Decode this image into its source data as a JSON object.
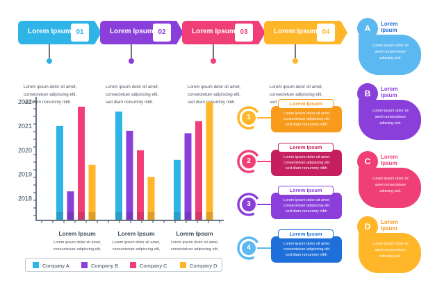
{
  "colors": {
    "blue": "#2fb4e8",
    "purple": "#8a3fdb",
    "crimson": "#c51f5d",
    "pink": "#f03f77",
    "yellow": "#ffb629",
    "orange": "#f89a1c",
    "lightblue": "#5bb8f0",
    "darkblue": "#1e6fd9"
  },
  "steps": [
    {
      "label": "Lorem Ipsum",
      "num": "01",
      "text": "Lorem ipsum dolor sit amet,\nconsectetuer adipiscing elit,\nsed diam nonummy nibh."
    },
    {
      "label": "Lorem Ipsum",
      "num": "02",
      "text": "Lorem ipsum dolor sit amet,\nconsectetuer adipiscing elit,\nsed diam nonummy nibh."
    },
    {
      "label": "Lorem Ipsum",
      "num": "03",
      "text": "Lorem ipsum dolor sit amet,\nconsectetuer adipiscing elit,\nsed diam nonummy nibh."
    },
    {
      "label": "Lorem Ipsum",
      "num": "04",
      "text": "Lorem ipsum dolor sit amet,\nconsectetuer adipiscing elit,\nsed diam nonummy nibh."
    }
  ],
  "right_cards": [
    {
      "letter": "A",
      "title": "Lorem\nIpsum",
      "text": "Lorem ipsum dolor sit\namet consectetuer\nadiscing sed."
    },
    {
      "letter": "B",
      "title": "Lorem\nIpsum",
      "text": "Lorem ipsum dolor sit\namet consectetuer\nadiscing sed."
    },
    {
      "letter": "C",
      "title": "Lorem\nIpsum",
      "text": "Lorem ipsum dolor sit\namet consectetuer\nadiscing sed."
    },
    {
      "letter": "D",
      "title": "Lorem\nIpsum",
      "text": "Lorem ipsum dolor sit\namet consectetuer\nadiscing sed."
    }
  ],
  "mid_items": [
    {
      "num": "1",
      "title": "Lorem Ipsum",
      "text": "Lorem ipsum dolor sit amet\nconsectetuer adipiscing elit\nsed diam nonummy nibh"
    },
    {
      "num": "2",
      "title": "Lorem Ipsum",
      "text": "Lorem ipsum dolor sit amet\nconsectetuer adipiscing elit\nsed diam nonummy nibh"
    },
    {
      "num": "3",
      "title": "Lorem Ipsum",
      "text": "Lorem ipsum dolor sit amet\nconsectetuer adipiscing elit\nsed diam nonummy nibh"
    },
    {
      "num": "4",
      "title": "Lorem Ipsum",
      "text": "Lorem ipsum dolor sit amet\nconsectetuer adipiscing elit\nsed diam nonummy nibh"
    }
  ],
  "chart_subtitles": [
    {
      "title": "Lorem Ipsum",
      "text": "Lorem ipsum dolor sit amet,\nconsectetuer adipiscing elit,"
    },
    {
      "title": "Lorem Ipsum",
      "text": "Lorem ipsum dolor sit amet,\nconsectetuer adipiscing elit,"
    },
    {
      "title": "Lorem Ipsum",
      "text": "Lorem ipsum dolor sit amet,\nconsectetuer adipiscing elit,"
    }
  ],
  "chart_data": {
    "type": "bar",
    "ylim": [
      2017.1,
      2022.2
    ],
    "yticks": [
      2018,
      2019,
      2020,
      2021,
      2022
    ],
    "series": [
      {
        "name": "Company A",
        "color": "#2fb4e8",
        "values": [
          2021.0,
          2021.6,
          2019.6
        ]
      },
      {
        "name": "Company B",
        "color": "#8a3fdb",
        "values": [
          2018.3,
          2020.8,
          2020.7
        ]
      },
      {
        "name": "Company C",
        "color": "#c51f5d",
        "values": [
          2021.8,
          2020.0,
          2021.2
        ]
      },
      {
        "name": "Company D",
        "color": "#ffb629",
        "values": [
          2019.4,
          2018.9,
          2022.0
        ]
      }
    ],
    "bar_colors": [
      "#2fb4e8",
      "#8a3fdb",
      "#f03f77",
      "#ffb629"
    ]
  }
}
